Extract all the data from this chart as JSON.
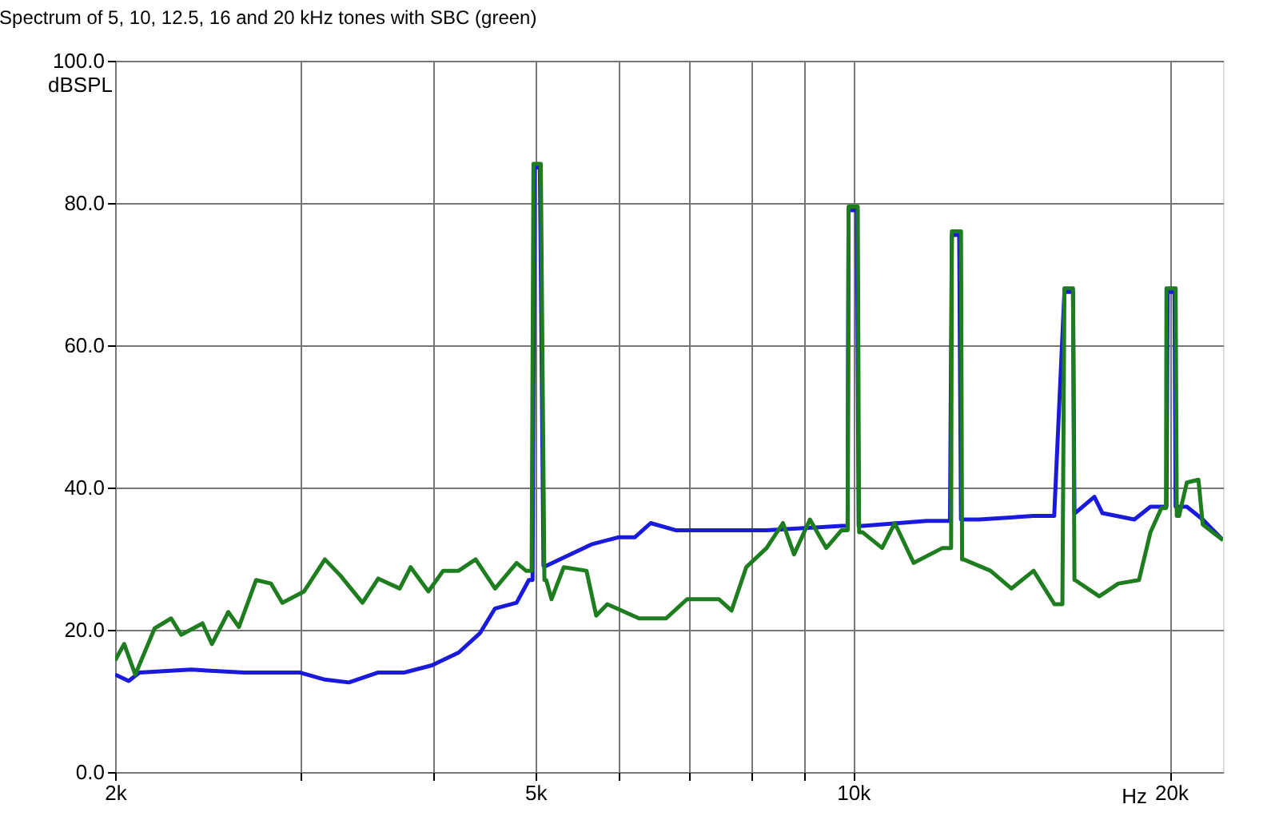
{
  "chart_data": {
    "type": "line",
    "title": "Spectrum of 5, 10, 12.5, 16 and 20 kHz tones with SBC (green)",
    "xlabel": "Hz",
    "ylabel": "dBSPL",
    "log": "x",
    "grid": true,
    "legend": false,
    "marker": "none",
    "line_style": "solid",
    "xlim": [
      2000,
      22400
    ],
    "ylim": [
      0,
      100
    ],
    "xticks": [
      {
        "value": 2000,
        "label": "2k"
      },
      {
        "value": 3000,
        "label": null
      },
      {
        "value": 4000,
        "label": null
      },
      {
        "value": 5000,
        "label": "5k"
      },
      {
        "value": 6000,
        "label": null
      },
      {
        "value": 7000,
        "label": null
      },
      {
        "value": 8000,
        "label": null
      },
      {
        "value": 9000,
        "label": null
      },
      {
        "value": 10000,
        "label": "10k"
      },
      {
        "value": 20000,
        "label": "20k"
      }
    ],
    "yticks": [
      {
        "value": 0,
        "label": "0.0"
      },
      {
        "value": 20,
        "label": "20.0"
      },
      {
        "value": 40,
        "label": "40.0"
      },
      {
        "value": 60,
        "label": "60.0"
      },
      {
        "value": 80,
        "label": "80.0"
      },
      {
        "value": 100,
        "label": "100.0"
      }
    ],
    "series": [
      {
        "color": "#1a1adc",
        "x": [
          2000,
          2060,
          2110,
          2360,
          2650,
          2990,
          3160,
          3330,
          3550,
          3760,
          3990,
          4230,
          4430,
          4580,
          4800,
          4930,
          4970,
          4990,
          5050,
          5090,
          5120,
          5650,
          5990,
          6210,
          6430,
          6790,
          7810,
          8280,
          9750,
          9880,
          9900,
          10080,
          10120,
          10210,
          11740,
          12350,
          12400,
          12600,
          12650,
          13160,
          14820,
          15500,
          15850,
          16150,
          16200,
          16220,
          16920,
          17220,
          18460,
          19120,
          19800,
          19850,
          20150,
          20200,
          20700,
          21430,
          22400
        ],
        "values": [
          13.7,
          12.8,
          14,
          14.4,
          14,
          14,
          13,
          12.6,
          14,
          14,
          15,
          16.8,
          19.5,
          23,
          23.8,
          27,
          27,
          85,
          85,
          29,
          29,
          32,
          33,
          33,
          35,
          34,
          34,
          34,
          34.6,
          34.6,
          79,
          79,
          34.6,
          34.6,
          35.3,
          35.3,
          75.5,
          75.5,
          35.5,
          35.5,
          36,
          36,
          67.5,
          67.5,
          36.4,
          36.4,
          38.7,
          36.4,
          35.5,
          37.3,
          37.3,
          67.5,
          67.5,
          37.3,
          37.3,
          35.5,
          32.6
        ]
      },
      {
        "color": "#1e7d1e",
        "x": [
          2000,
          2040,
          2090,
          2180,
          2260,
          2310,
          2420,
          2470,
          2560,
          2620,
          2720,
          2810,
          2880,
          3020,
          3160,
          3270,
          3430,
          3550,
          3720,
          3810,
          3960,
          4090,
          4230,
          4390,
          4580,
          4800,
          4900,
          4960,
          4980,
          5060,
          5100,
          5120,
          5180,
          5320,
          5590,
          5710,
          5850,
          6270,
          6650,
          6960,
          7460,
          7670,
          7920,
          8280,
          8580,
          8790,
          9100,
          9430,
          9750,
          9880,
          9900,
          10100,
          10130,
          10210,
          10650,
          10950,
          11410,
          12150,
          12380,
          12400,
          12650,
          12680,
          12720,
          13490,
          14120,
          14820,
          15510,
          15780,
          15850,
          16150,
          16200,
          16220,
          17100,
          17830,
          18650,
          19120,
          19580,
          19780,
          19800,
          20200,
          20250,
          20350,
          20700,
          21230,
          21430,
          22400
        ],
        "values": [
          15.7,
          18,
          13.7,
          20.2,
          21.6,
          19.3,
          20.9,
          18,
          22.5,
          20.4,
          27,
          26.5,
          23.8,
          25.4,
          29.9,
          27.6,
          23.8,
          27.2,
          25.8,
          28.8,
          25.4,
          28.3,
          28.3,
          29.9,
          25.8,
          29.4,
          28.3,
          28.3,
          85.5,
          85.5,
          27,
          27,
          24.3,
          28.8,
          28.3,
          22,
          23.6,
          21.6,
          21.6,
          24.3,
          24.3,
          22.7,
          28.8,
          31.5,
          35,
          30.6,
          35.5,
          31.5,
          34,
          34,
          79.5,
          79.5,
          33.7,
          33.7,
          31.5,
          35,
          29.4,
          31.5,
          31.5,
          76,
          76,
          29.9,
          29.9,
          28.3,
          25.8,
          28.3,
          23.6,
          23.6,
          68,
          68,
          27,
          27,
          24.7,
          26.5,
          27,
          33.7,
          37.1,
          37.1,
          68,
          68,
          36,
          36,
          40.7,
          41.1,
          34.8,
          32.6
        ]
      }
    ]
  }
}
